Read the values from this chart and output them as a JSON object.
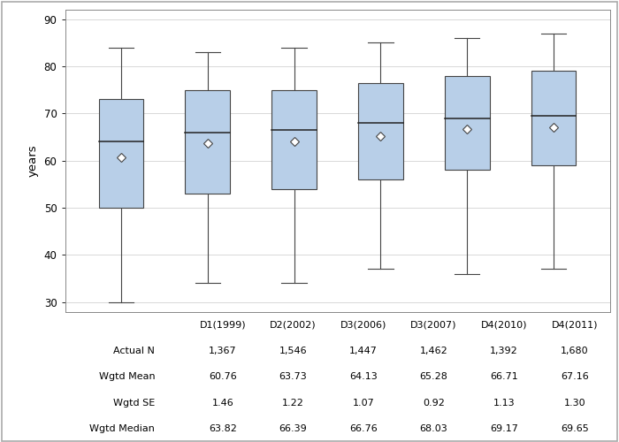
{
  "ylabel": "years",
  "ylim": [
    28,
    92
  ],
  "yticks": [
    30,
    40,
    50,
    60,
    70,
    80,
    90
  ],
  "categories": [
    "D1(1999)",
    "D2(2002)",
    "D3(2006)",
    "D3(2007)",
    "D4(2010)",
    "D4(2011)"
  ],
  "box_data": [
    {
      "whislo": 30,
      "q1": 50,
      "med": 64,
      "q3": 73,
      "whishi": 84,
      "mean": 60.76
    },
    {
      "whislo": 34,
      "q1": 53,
      "med": 66,
      "q3": 75,
      "whishi": 83,
      "mean": 63.73
    },
    {
      "whislo": 34,
      "q1": 54,
      "med": 66.5,
      "q3": 75,
      "whishi": 84,
      "mean": 64.13
    },
    {
      "whislo": 37,
      "q1": 56,
      "med": 68,
      "q3": 76.5,
      "whishi": 85,
      "mean": 65.28
    },
    {
      "whislo": 36,
      "q1": 58,
      "med": 69,
      "q3": 78,
      "whishi": 86,
      "mean": 66.71
    },
    {
      "whislo": 37,
      "q1": 59,
      "med": 69.5,
      "q3": 79,
      "whishi": 87,
      "mean": 67.16
    }
  ],
  "table_rows": [
    [
      "Actual N",
      "1,367",
      "1,546",
      "1,447",
      "1,462",
      "1,392",
      "1,680"
    ],
    [
      "Wgtd Mean",
      "60.76",
      "63.73",
      "64.13",
      "65.28",
      "66.71",
      "67.16"
    ],
    [
      "Wgtd SE",
      "1.46",
      "1.22",
      "1.07",
      "0.92",
      "1.13",
      "1.30"
    ],
    [
      "Wgtd Median",
      "63.82",
      "66.39",
      "66.76",
      "68.03",
      "69.17",
      "69.65"
    ]
  ],
  "box_color": "#b8cfe8",
  "box_edge_color": "#444444",
  "whisker_color": "#444444",
  "median_color": "#222222",
  "mean_marker_facecolor": "#ffffff",
  "mean_marker_edgecolor": "#444444",
  "grid_color": "#d8d8d8",
  "bg_color": "#ffffff",
  "plot_bg_color": "#ffffff",
  "border_color": "#aaaaaa",
  "text_color": "#000000",
  "table_font_size": 8.0,
  "axis_font_size": 8.5,
  "box_width": 0.52,
  "cap_ratio": 0.28
}
